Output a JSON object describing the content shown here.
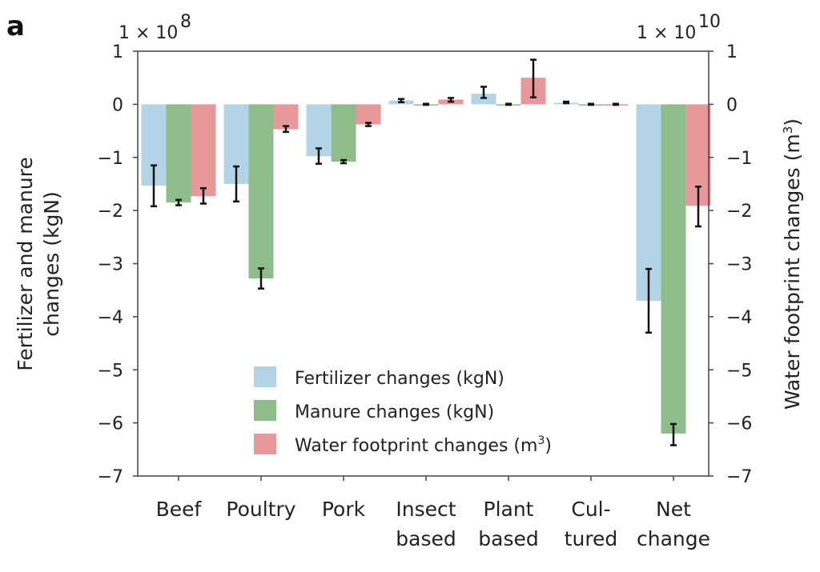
{
  "panel_label": "a",
  "chart_data": {
    "type": "bar",
    "categories": [
      [
        "Beef"
      ],
      [
        "Poultry"
      ],
      [
        "Pork"
      ],
      [
        "Insect",
        "based"
      ],
      [
        "Plant",
        "based"
      ],
      [
        "Cul-",
        "tured"
      ],
      [
        "Net",
        "change"
      ]
    ],
    "series": [
      {
        "name": "Fertilizer changes (kgN)",
        "axis": "left",
        "color": "#b3d4e6",
        "values": [
          -1.53,
          -1.5,
          -0.98,
          0.07,
          0.2,
          0.03,
          -3.7
        ],
        "err_low": [
          -1.92,
          -1.83,
          -1.12,
          0.04,
          0.12,
          0.02,
          -4.3
        ],
        "err_high": [
          -1.15,
          -1.17,
          -0.83,
          0.1,
          0.33,
          0.05,
          -3.1
        ]
      },
      {
        "name": "Manure changes (kgN)",
        "axis": "left",
        "color": "#8fbc8b",
        "values": [
          -1.85,
          -3.28,
          -1.08,
          0.0,
          0.0,
          0.0,
          -6.2
        ],
        "err_low": [
          -1.9,
          -3.47,
          -1.11,
          -0.01,
          -0.01,
          -0.01,
          -6.42
        ],
        "err_high": [
          -1.8,
          -3.09,
          -1.05,
          0.01,
          0.01,
          0.01,
          -6.02
        ]
      },
      {
        "name": "Water footprint changes (m",
        "name_sup": "3",
        "name_tail": ")",
        "axis": "right",
        "color": "#e8979a",
        "values": [
          -1.73,
          -0.47,
          -0.38,
          0.09,
          0.5,
          0.0,
          -1.91
        ],
        "err_low": [
          -1.87,
          -0.52,
          -0.41,
          0.05,
          0.13,
          -0.01,
          -2.3
        ],
        "err_high": [
          -1.58,
          -0.41,
          -0.35,
          0.12,
          0.84,
          0.01,
          -1.55
        ]
      }
    ],
    "ylabel": "Fertilizer and manure changes (kgN)",
    "ylabel_lines": [
      "Fertilizer and manure",
      "changes (kgN)"
    ],
    "ylabel_right": "Water footprint changes (m",
    "ylabel_right_sup": "3",
    "ylabel_right_tail": ")",
    "left_multiplier": "1 × 10",
    "left_multiplier_exp": "8",
    "right_multiplier": "1 × 10",
    "right_multiplier_exp": "10",
    "ylim": [
      -7,
      1
    ],
    "yticks": [
      1,
      0,
      -1,
      -2,
      -3,
      -4,
      -5,
      -6,
      -7
    ],
    "ytick_labels": [
      "1",
      "0",
      "−1",
      "−2",
      "−3",
      "−4",
      "−5",
      "−6",
      "−7"
    ],
    "legend_position": "bottom-center"
  }
}
